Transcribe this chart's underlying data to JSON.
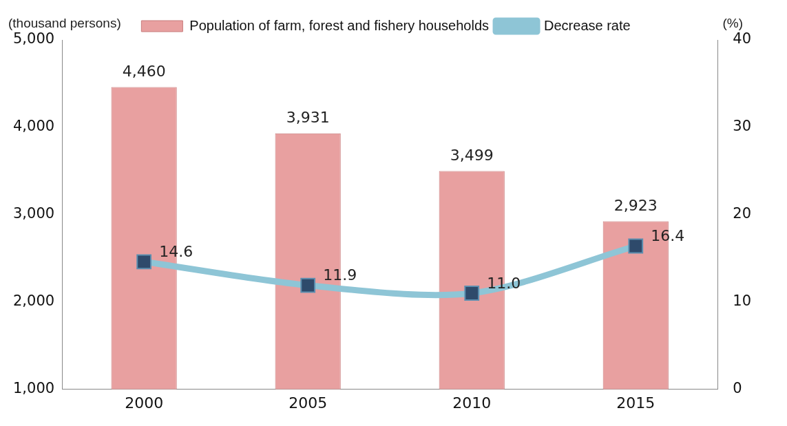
{
  "chart_data": {
    "type": "bar",
    "categories": [
      "2000",
      "2005",
      "2010",
      "2015"
    ],
    "series": [
      {
        "name": "Population of farm, forest and fishery households",
        "color": "#e8a0a0",
        "values": [
          4460,
          3931,
          3499,
          2923
        ],
        "value_labels": [
          "4,460",
          "3,931",
          "3,499",
          "2,923"
        ]
      },
      {
        "name": "Decrease rate",
        "type": "line",
        "axis": "y2",
        "color": "#8ec5d6",
        "values": [
          14.6,
          11.9,
          11.0,
          16.4
        ],
        "value_labels": [
          "14.6",
          "11.9",
          "11.0",
          "16.4"
        ]
      }
    ],
    "ylabel": "(thousand persons)",
    "y2label": "(%)",
    "ylim": [
      1000,
      5000
    ],
    "yticks": [
      {
        "value": 1000,
        "label": "1,000"
      },
      {
        "value": 2000,
        "label": "2,000"
      },
      {
        "value": 3000,
        "label": "3,000"
      },
      {
        "value": 4000,
        "label": "4,000"
      },
      {
        "value": 5000,
        "label": "5,000"
      }
    ],
    "y2lim": [
      0,
      40
    ],
    "y2ticks": [
      0,
      10,
      20,
      30,
      40
    ],
    "data_labels": true,
    "grid": false,
    "legend": "top",
    "marker": "square",
    "line_style": "solid"
  }
}
